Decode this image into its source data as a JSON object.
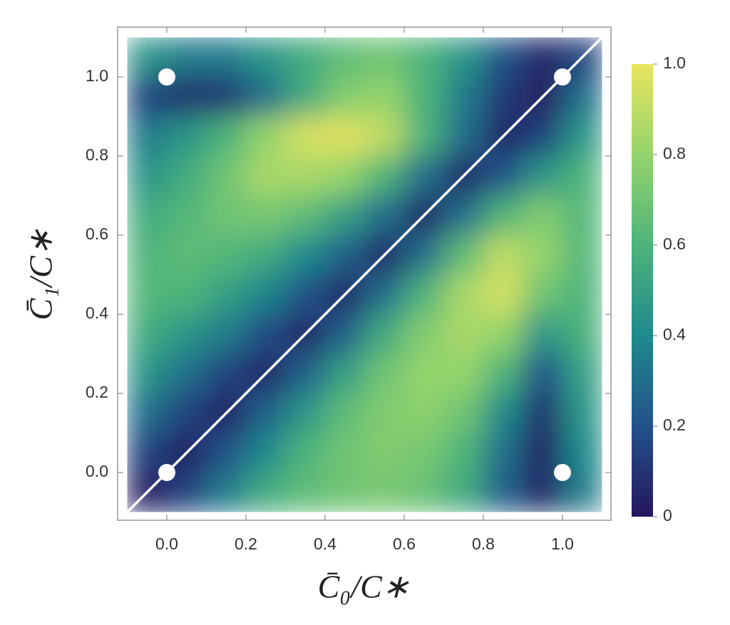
{
  "chart_data": {
    "type": "heatmap",
    "xlabel": "C̄₀/C∗",
    "ylabel": "C̄₁/C∗",
    "xlim": [
      -0.1,
      1.1
    ],
    "ylim": [
      -0.1,
      1.1
    ],
    "xticks": [
      {
        "value": 0,
        "label": "0.0"
      },
      0.2,
      0.4,
      0.6,
      0.8,
      {
        "value": 1,
        "label": "1.0"
      }
    ],
    "yticks": [
      {
        "value": 0,
        "label": "0.0"
      },
      0.2,
      0.4,
      0.6,
      0.8,
      {
        "value": 1,
        "label": "1.0"
      }
    ],
    "x": [
      -0.05,
      0.05,
      0.15,
      0.25,
      0.35,
      0.45,
      0.55,
      0.65,
      0.75,
      0.85,
      0.95,
      1.05
    ],
    "y": [
      1.05,
      0.95,
      0.85,
      0.75,
      0.65,
      0.55,
      0.45,
      0.35,
      0.25,
      0.15,
      0.05,
      -0.05
    ],
    "values": [
      [
        0.45,
        0.35,
        0.35,
        0.45,
        0.55,
        0.65,
        0.7,
        0.6,
        0.45,
        0.2,
        0.05,
        0.15
      ],
      [
        0.15,
        0.08,
        0.1,
        0.3,
        0.55,
        0.75,
        0.8,
        0.6,
        0.35,
        0.12,
        0.02,
        0.3
      ],
      [
        0.35,
        0.45,
        0.6,
        0.8,
        0.95,
        0.98,
        0.9,
        0.6,
        0.3,
        0.05,
        0.15,
        0.45
      ],
      [
        0.45,
        0.55,
        0.7,
        0.85,
        0.85,
        0.8,
        0.6,
        0.3,
        0.05,
        0.2,
        0.45,
        0.6
      ],
      [
        0.55,
        0.62,
        0.7,
        0.72,
        0.65,
        0.5,
        0.3,
        0.05,
        0.3,
        0.6,
        0.75,
        0.62
      ],
      [
        0.6,
        0.65,
        0.62,
        0.55,
        0.4,
        0.25,
        0.05,
        0.3,
        0.65,
        0.9,
        0.8,
        0.62
      ],
      [
        0.62,
        0.6,
        0.5,
        0.38,
        0.2,
        0.05,
        0.3,
        0.6,
        0.85,
        0.95,
        0.7,
        0.6
      ],
      [
        0.55,
        0.45,
        0.35,
        0.18,
        0.05,
        0.25,
        0.55,
        0.75,
        0.85,
        0.8,
        0.45,
        0.58
      ],
      [
        0.45,
        0.3,
        0.15,
        0.05,
        0.25,
        0.5,
        0.7,
        0.8,
        0.8,
        0.6,
        0.2,
        0.5
      ],
      [
        0.3,
        0.15,
        0.04,
        0.25,
        0.45,
        0.65,
        0.75,
        0.78,
        0.7,
        0.4,
        0.08,
        0.45
      ],
      [
        0.15,
        0.04,
        0.2,
        0.4,
        0.6,
        0.7,
        0.75,
        0.72,
        0.6,
        0.3,
        0.04,
        0.4
      ],
      [
        0.03,
        0.15,
        0.35,
        0.55,
        0.65,
        0.7,
        0.72,
        0.68,
        0.55,
        0.25,
        0.05,
        0.35
      ]
    ],
    "colorscale": [
      {
        "value": 0,
        "color": "#25165c"
      },
      {
        "value": 0.2,
        "color": "#22528a"
      },
      {
        "value": 0.4,
        "color": "#1f8a8d"
      },
      {
        "value": 0.6,
        "color": "#4db47a"
      },
      {
        "value": 0.8,
        "color": "#94d46c"
      },
      {
        "value": 1,
        "color": "#e9e45e"
      }
    ],
    "colorbar": {
      "lim": [
        0,
        1
      ],
      "ticks": [
        0,
        {
          "value": 0.2,
          "label": "0.2"
        },
        {
          "value": 0.4,
          "label": "0.4"
        },
        {
          "value": 0.6,
          "label": "0.6"
        },
        {
          "value": 0.8,
          "label": "0.8"
        },
        {
          "value": 1,
          "label": "1.0"
        }
      ]
    },
    "line": {
      "x": [
        -0.1,
        1.1
      ],
      "y": [
        -0.1,
        1.1
      ],
      "color": "#ffffff"
    },
    "points": {
      "x": [
        0,
        0,
        1,
        1
      ],
      "y": [
        0,
        1,
        0,
        1
      ],
      "color": "#ffffff"
    }
  }
}
